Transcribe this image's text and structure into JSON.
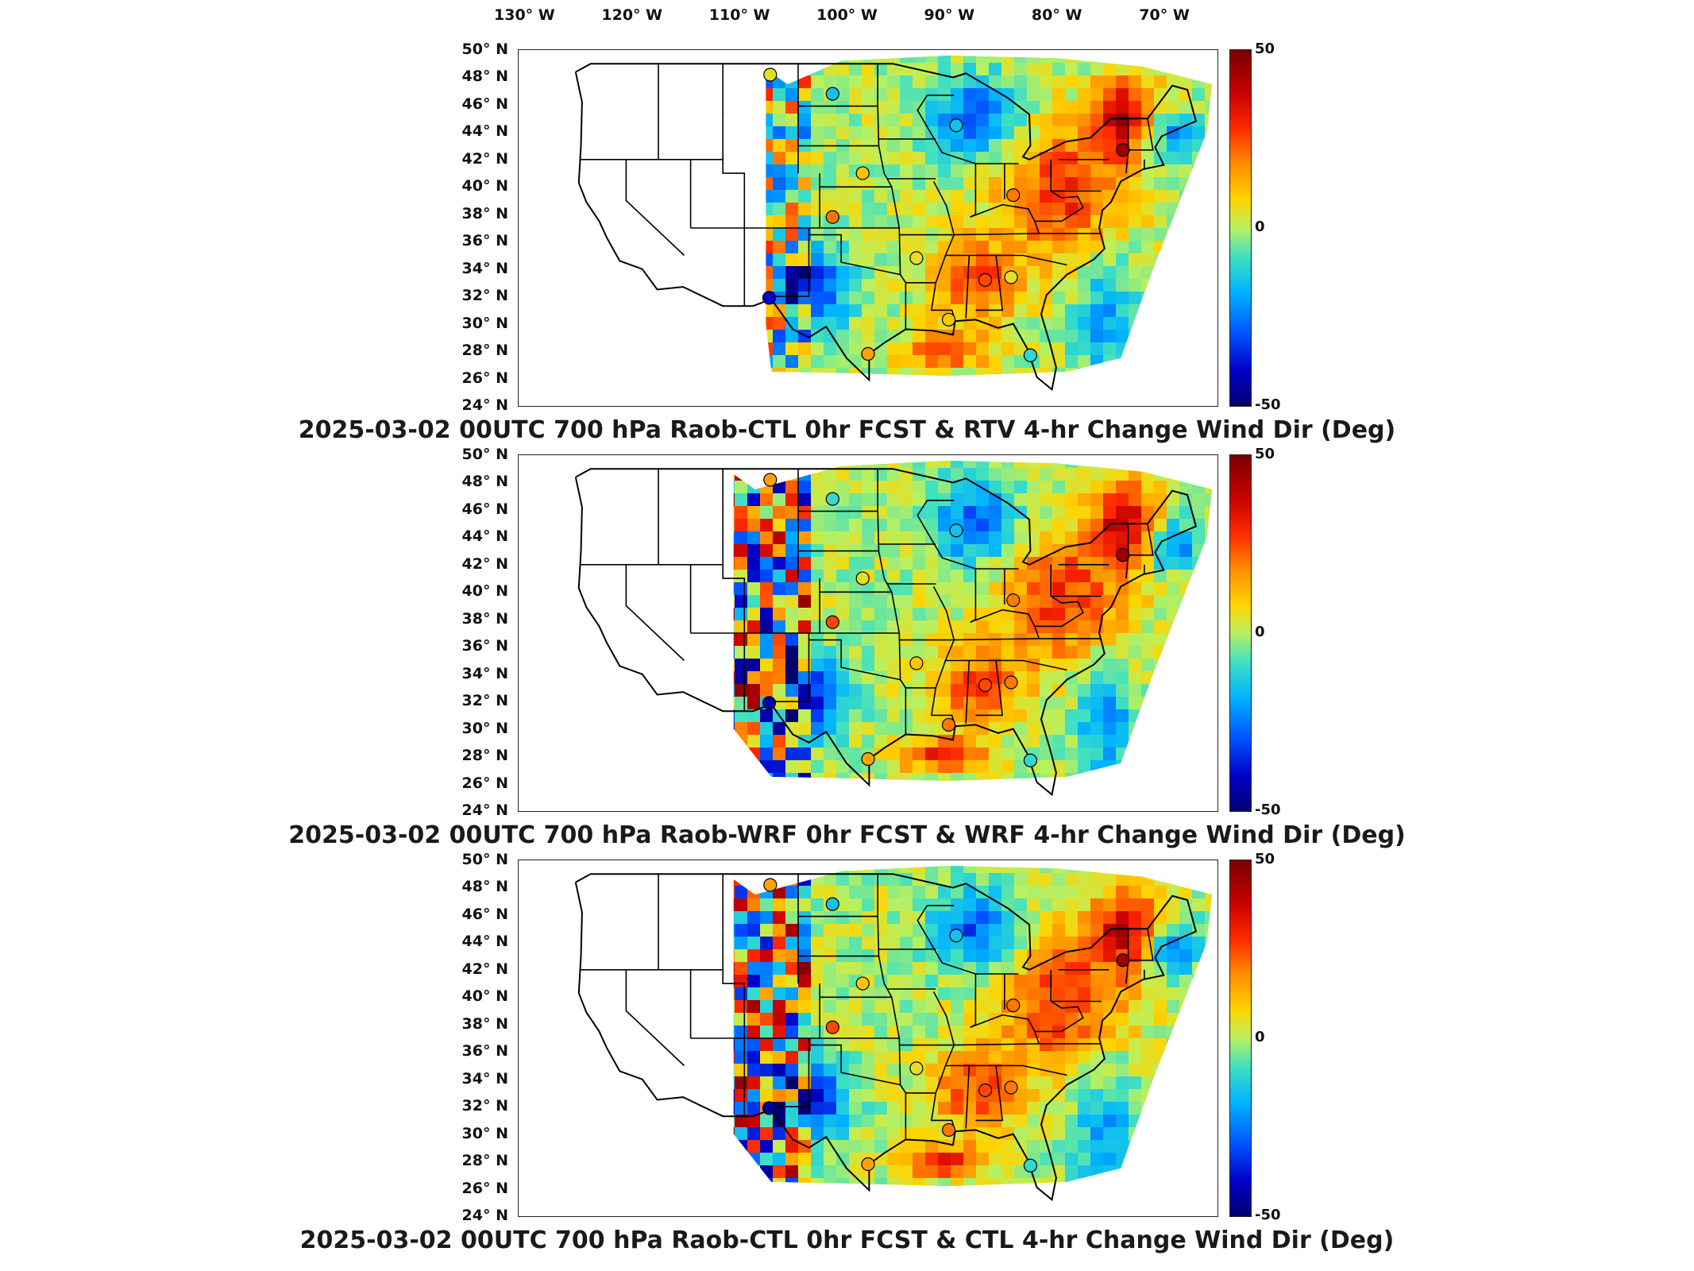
{
  "lon_labels": [
    "130° W",
    "120° W",
    "110° W",
    "100° W",
    "90° W",
    "80° W",
    "70° W"
  ],
  "lat_labels": [
    "50° N",
    "48° N",
    "46° N",
    "44° N",
    "42° N",
    "40° N",
    "38° N",
    "36° N",
    "34° N",
    "32° N",
    "30° N",
    "28° N",
    "26° N",
    "24° N"
  ],
  "colorbar": {
    "max": "50",
    "mid": "0",
    "min": "-50",
    "colormap": "jet"
  },
  "panels": [
    {
      "title": "2025-03-02 00UTC 700 hPa Raob-CTL 0hr FCST & RTV 4-hr Change Wind Dir (Deg)"
    },
    {
      "title": "2025-03-02 00UTC 700 hPa Raob-WRF 0hr FCST & WRF 4-hr Change Wind Dir (Deg)"
    },
    {
      "title": "2025-03-02 00UTC 700 hPa Raob-CTL 0hr FCST & CTL 4-hr Change Wind Dir (Deg)"
    }
  ],
  "chart_data": [
    {
      "type": "heatmap",
      "title": "2025-03-02 00UTC 700 hPa Raob-CTL 0hr FCST & RTV 4-hr Change Wind Dir (Deg)",
      "x_range_deg": [
        -130,
        -65
      ],
      "y_range_deg": [
        24,
        50
      ],
      "colorbar_range": [
        -50,
        50
      ],
      "stations": [
        {
          "lon": -106.6,
          "lat": 48.2,
          "value": 5
        },
        {
          "lon": -100.8,
          "lat": 46.8,
          "value": -15
        },
        {
          "lon": -98.0,
          "lat": 41.0,
          "value": 10
        },
        {
          "lon": -89.3,
          "lat": 44.5,
          "value": -15
        },
        {
          "lon": -100.8,
          "lat": 37.8,
          "value": 20
        },
        {
          "lon": -93.0,
          "lat": 34.8,
          "value": 5
        },
        {
          "lon": -84.0,
          "lat": 39.4,
          "value": 20
        },
        {
          "lon": -86.6,
          "lat": 33.2,
          "value": 25
        },
        {
          "lon": -84.2,
          "lat": 33.4,
          "value": 5
        },
        {
          "lon": -106.7,
          "lat": 31.9,
          "value": -40
        },
        {
          "lon": -97.5,
          "lat": 27.8,
          "value": 15
        },
        {
          "lon": -90.0,
          "lat": 30.3,
          "value": 10
        },
        {
          "lon": -82.4,
          "lat": 27.7,
          "value": -10
        },
        {
          "lon": -73.8,
          "lat": 42.7,
          "value": 45
        }
      ]
    },
    {
      "type": "heatmap",
      "title": "2025-03-02 00UTC 700 hPa Raob-WRF 0hr FCST & WRF 4-hr Change Wind Dir (Deg)",
      "x_range_deg": [
        -130,
        -65
      ],
      "y_range_deg": [
        24,
        50
      ],
      "colorbar_range": [
        -50,
        50
      ],
      "stations": [
        {
          "lon": -106.6,
          "lat": 48.2,
          "value": 15
        },
        {
          "lon": -100.8,
          "lat": 46.8,
          "value": -10
        },
        {
          "lon": -98.0,
          "lat": 41.0,
          "value": 5
        },
        {
          "lon": -89.3,
          "lat": 44.5,
          "value": -15
        },
        {
          "lon": -100.8,
          "lat": 37.8,
          "value": 25
        },
        {
          "lon": -93.0,
          "lat": 34.8,
          "value": 10
        },
        {
          "lon": -84.0,
          "lat": 39.4,
          "value": 20
        },
        {
          "lon": -86.6,
          "lat": 33.2,
          "value": 25
        },
        {
          "lon": -84.2,
          "lat": 33.4,
          "value": 20
        },
        {
          "lon": -106.7,
          "lat": 31.9,
          "value": -45
        },
        {
          "lon": -97.5,
          "lat": 27.8,
          "value": 15
        },
        {
          "lon": -90.0,
          "lat": 30.3,
          "value": 20
        },
        {
          "lon": -82.4,
          "lat": 27.7,
          "value": -10
        },
        {
          "lon": -73.8,
          "lat": 42.7,
          "value": 45
        }
      ]
    },
    {
      "type": "heatmap",
      "title": "2025-03-02 00UTC 700 hPa Raob-CTL 0hr FCST & CTL 4-hr Change Wind Dir (Deg)",
      "x_range_deg": [
        -130,
        -65
      ],
      "y_range_deg": [
        24,
        50
      ],
      "colorbar_range": [
        -50,
        50
      ],
      "stations": [
        {
          "lon": -106.6,
          "lat": 48.2,
          "value": 15
        },
        {
          "lon": -100.8,
          "lat": 46.8,
          "value": -15
        },
        {
          "lon": -98.0,
          "lat": 41.0,
          "value": 10
        },
        {
          "lon": -89.3,
          "lat": 44.5,
          "value": -15
        },
        {
          "lon": -100.8,
          "lat": 37.8,
          "value": 25
        },
        {
          "lon": -93.0,
          "lat": 34.8,
          "value": 5
        },
        {
          "lon": -84.0,
          "lat": 39.4,
          "value": 20
        },
        {
          "lon": -86.6,
          "lat": 33.2,
          "value": 25
        },
        {
          "lon": -84.2,
          "lat": 33.4,
          "value": 20
        },
        {
          "lon": -106.7,
          "lat": 31.9,
          "value": -45
        },
        {
          "lon": -97.5,
          "lat": 27.8,
          "value": 15
        },
        {
          "lon": -90.0,
          "lat": 30.3,
          "value": 20
        },
        {
          "lon": -82.4,
          "lat": 27.7,
          "value": -10
        },
        {
          "lon": -73.8,
          "lat": 42.7,
          "value": 45
        }
      ]
    }
  ]
}
